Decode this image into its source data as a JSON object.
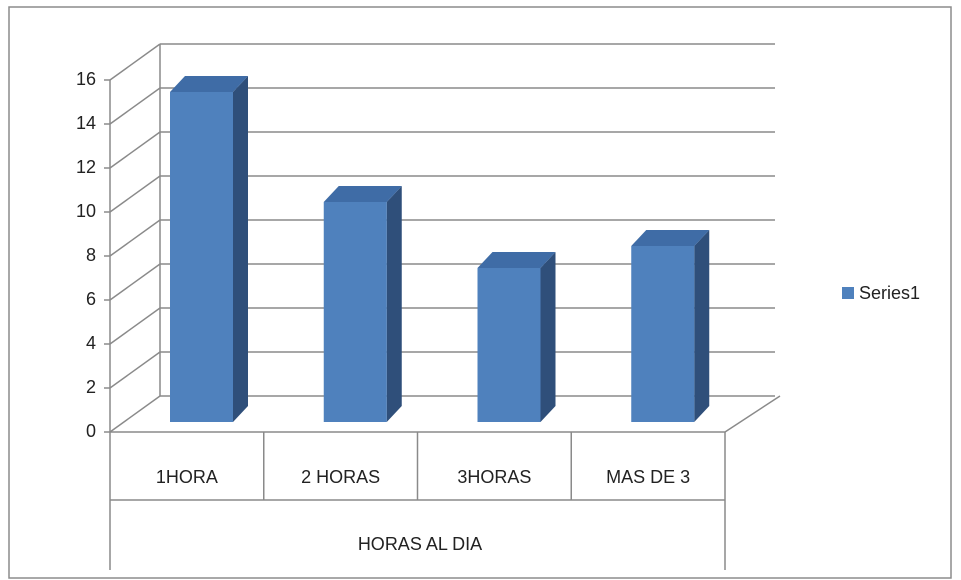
{
  "chart_data": {
    "type": "bar3d",
    "categories": [
      "1HORA",
      "2 HORAS",
      "3HORAS",
      "MAS DE 3"
    ],
    "xlabel": "HORAS AL DIA",
    "series": [
      {
        "name": "Series1",
        "color": "#4f81bd",
        "values": [
          15,
          10,
          7,
          8
        ]
      }
    ],
    "ylim": [
      0,
      16
    ],
    "yticks": [
      0,
      2,
      4,
      6,
      8,
      10,
      12,
      14,
      16
    ],
    "grid": true,
    "legend": "right"
  }
}
